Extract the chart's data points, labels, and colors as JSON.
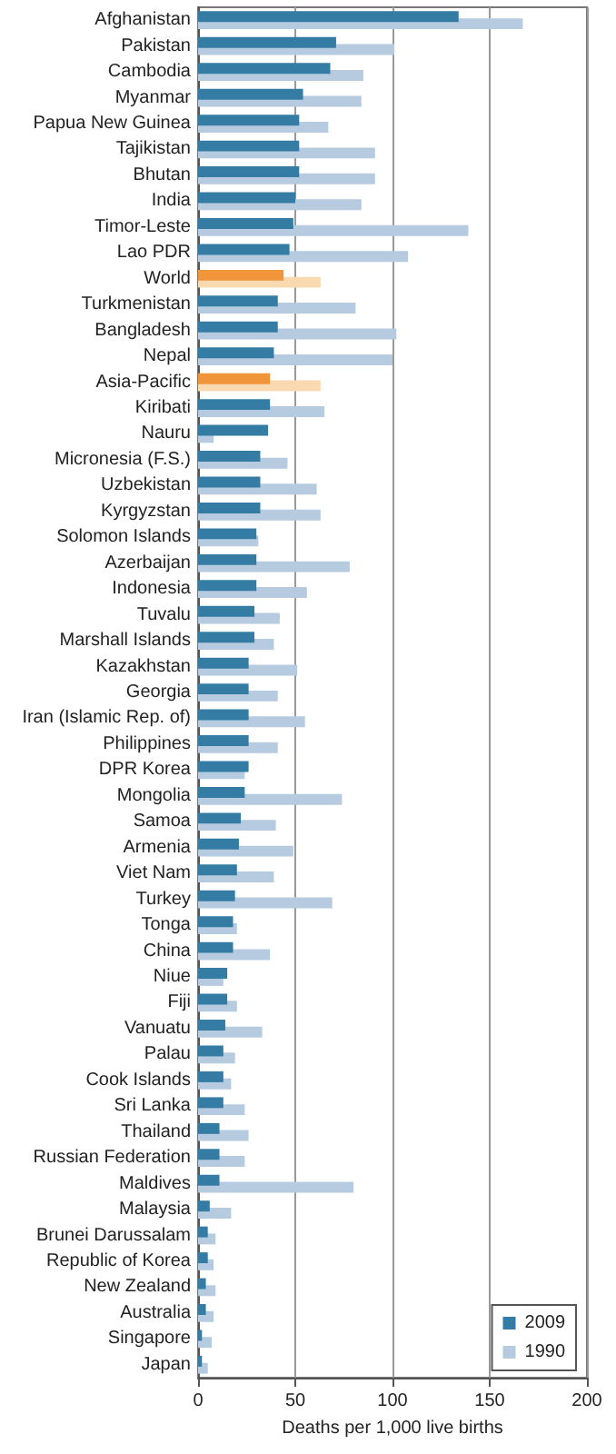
{
  "chart_data": {
    "type": "bar",
    "orientation": "horizontal",
    "xlabel": "Deaths per 1,000 live births",
    "categories": [
      "Afghanistan",
      "Pakistan",
      "Cambodia",
      "Myanmar",
      "Papua New Guinea",
      "Tajikistan",
      "Bhutan",
      "India",
      "Timor-Leste",
      "Lao PDR",
      "World",
      "Turkmenistan",
      "Bangladesh",
      "Nepal",
      "Asia-Pacific",
      "Kiribati",
      "Nauru",
      "Micronesia (F.S.)",
      "Uzbekistan",
      "Kyrgyzstan",
      "Solomon Islands",
      "Azerbaijan",
      "Indonesia",
      "Tuvalu",
      "Marshall Islands",
      "Kazakhstan",
      "Georgia",
      "Iran (Islamic Rep. of)",
      "Philippines",
      "DPR Korea",
      "Mongolia",
      "Samoa",
      "Armenia",
      "Viet Nam",
      "Turkey",
      "Tonga",
      "China",
      "Niue",
      "Fiji",
      "Vanuatu",
      "Palau",
      "Cook Islands",
      "Sri Lanka",
      "Thailand",
      "Russian Federation",
      "Maldives",
      "Malaysia",
      "Brunei Darussalam",
      "Republic of Korea",
      "New Zealand",
      "Australia",
      "Singapore",
      "Japan"
    ],
    "series": [
      {
        "name": "2009",
        "color": "#357ca5",
        "colors": [
          "#357ca5",
          "#357ca5",
          "#357ca5",
          "#357ca5",
          "#357ca5",
          "#357ca5",
          "#357ca5",
          "#357ca5",
          "#357ca5",
          "#357ca5",
          "#f0953a",
          "#357ca5",
          "#357ca5",
          "#357ca5",
          "#f0953a",
          "#357ca5",
          "#357ca5",
          "#357ca5",
          "#357ca5",
          "#357ca5",
          "#357ca5",
          "#357ca5",
          "#357ca5",
          "#357ca5",
          "#357ca5",
          "#357ca5",
          "#357ca5",
          "#357ca5",
          "#357ca5",
          "#357ca5",
          "#357ca5",
          "#357ca5",
          "#357ca5",
          "#357ca5",
          "#357ca5",
          "#357ca5",
          "#357ca5",
          "#357ca5",
          "#357ca5",
          "#357ca5",
          "#357ca5",
          "#357ca5",
          "#357ca5",
          "#357ca5",
          "#357ca5",
          "#357ca5",
          "#357ca5",
          "#357ca5",
          "#357ca5",
          "#357ca5",
          "#357ca5",
          "#357ca5",
          "#357ca5"
        ],
        "values": [
          134,
          71,
          68,
          54,
          52,
          52,
          52,
          50,
          49,
          47,
          44,
          41,
          41,
          39,
          37,
          37,
          36,
          32,
          32,
          32,
          30,
          30,
          30,
          29,
          29,
          26,
          26,
          26,
          26,
          26,
          24,
          22,
          21,
          20,
          19,
          18,
          18,
          15,
          15,
          14,
          13,
          13,
          13,
          11,
          11,
          11,
          6,
          5,
          5,
          4,
          4,
          2,
          2
        ]
      },
      {
        "name": "1990",
        "color": "#b6cbe0",
        "colors": [
          "#b6cbe0",
          "#b6cbe0",
          "#b6cbe0",
          "#b6cbe0",
          "#b6cbe0",
          "#b6cbe0",
          "#b6cbe0",
          "#b6cbe0",
          "#b6cbe0",
          "#b6cbe0",
          "#f9d9b0",
          "#b6cbe0",
          "#b6cbe0",
          "#b6cbe0",
          "#f9d9b0",
          "#b6cbe0",
          "#b6cbe0",
          "#b6cbe0",
          "#b6cbe0",
          "#b6cbe0",
          "#b6cbe0",
          "#b6cbe0",
          "#b6cbe0",
          "#b6cbe0",
          "#b6cbe0",
          "#b6cbe0",
          "#b6cbe0",
          "#b6cbe0",
          "#b6cbe0",
          "#b6cbe0",
          "#b6cbe0",
          "#b6cbe0",
          "#b6cbe0",
          "#b6cbe0",
          "#b6cbe0",
          "#b6cbe0",
          "#b6cbe0",
          "#b6cbe0",
          "#b6cbe0",
          "#b6cbe0",
          "#b6cbe0",
          "#b6cbe0",
          "#b6cbe0",
          "#b6cbe0",
          "#b6cbe0",
          "#b6cbe0",
          "#b6cbe0",
          "#b6cbe0",
          "#b6cbe0",
          "#b6cbe0",
          "#b6cbe0",
          "#b6cbe0",
          "#b6cbe0"
        ],
        "values": [
          167,
          101,
          85,
          84,
          67,
          91,
          91,
          84,
          139,
          108,
          63,
          81,
          102,
          100,
          63,
          65,
          8,
          46,
          61,
          63,
          31,
          78,
          56,
          42,
          39,
          51,
          41,
          55,
          41,
          24,
          74,
          40,
          49,
          39,
          69,
          20,
          37,
          13,
          20,
          33,
          19,
          17,
          24,
          26,
          24,
          80,
          17,
          9,
          8,
          9,
          8,
          7,
          5
        ]
      }
    ],
    "xlim": [
      0,
      200
    ],
    "xticks": [
      0,
      50,
      100,
      150,
      200
    ],
    "grid": "x",
    "legend": "bottom right"
  }
}
